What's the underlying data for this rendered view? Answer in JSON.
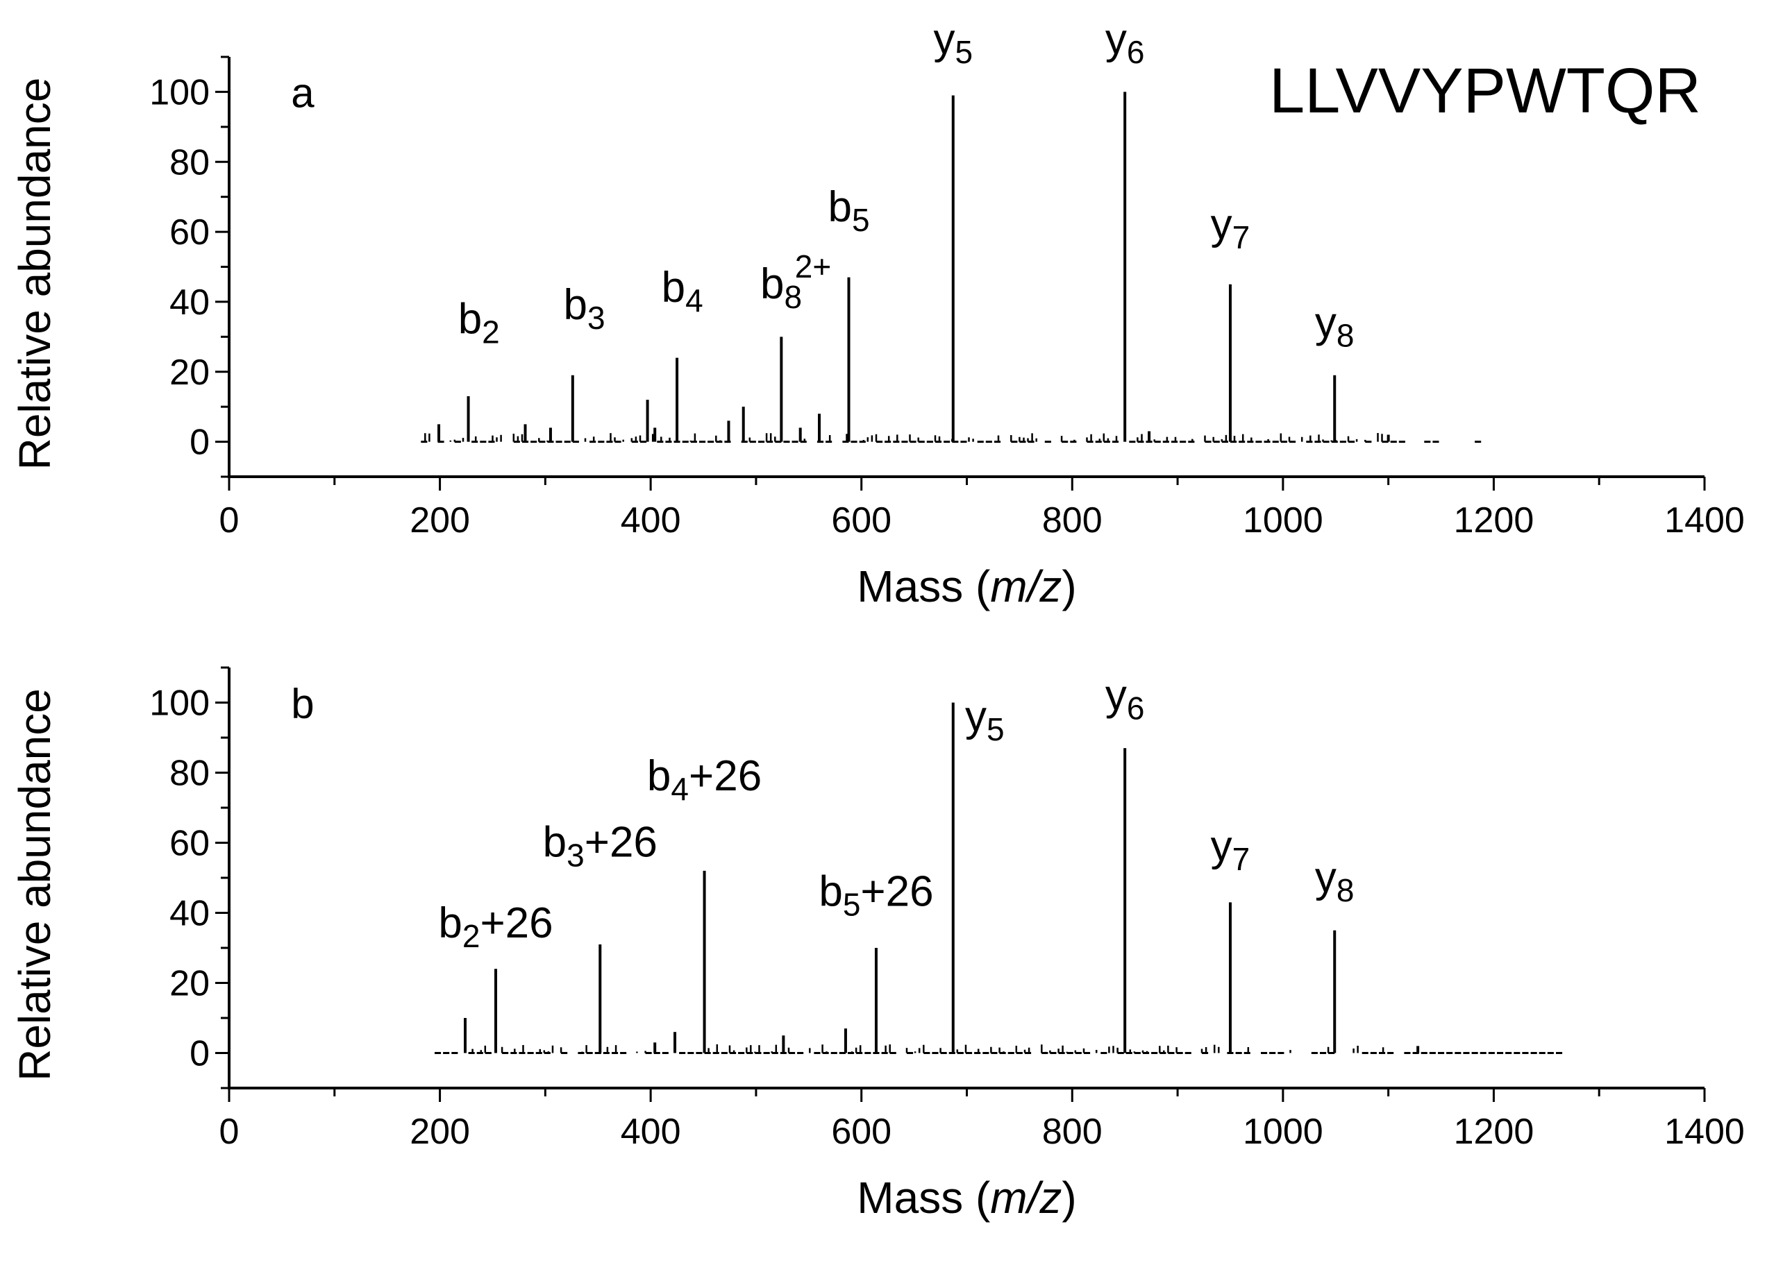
{
  "figure": {
    "peptide": "LLVVYPWTQR",
    "text_color": "#000000",
    "background": "#ffffff"
  },
  "chart_data": [
    {
      "type": "bar",
      "panel": "a",
      "title": "",
      "xlabel_main": "Mass (",
      "xlabel_italic": "m/z",
      "xlabel_close": ")",
      "ylabel": "Relative abundance",
      "xlim": [
        0,
        1400
      ],
      "ylim": [
        -10,
        110
      ],
      "xticks": [
        0,
        200,
        400,
        600,
        800,
        1000,
        1200,
        1400
      ],
      "yticks": [
        0,
        20,
        40,
        60,
        80,
        100
      ],
      "noise_range": [
        182,
        1195
      ],
      "peaks": [
        {
          "x": 199,
          "y": 5
        },
        {
          "x": 227,
          "y": 13
        },
        {
          "x": 281,
          "y": 5
        },
        {
          "x": 305,
          "y": 4
        },
        {
          "x": 326,
          "y": 19
        },
        {
          "x": 397,
          "y": 12
        },
        {
          "x": 404,
          "y": 4
        },
        {
          "x": 425,
          "y": 24
        },
        {
          "x": 474,
          "y": 6
        },
        {
          "x": 488,
          "y": 10
        },
        {
          "x": 524,
          "y": 30
        },
        {
          "x": 542,
          "y": 4
        },
        {
          "x": 560,
          "y": 8
        },
        {
          "x": 588,
          "y": 47
        },
        {
          "x": 687,
          "y": 99
        },
        {
          "x": 850,
          "y": 100
        },
        {
          "x": 873,
          "y": 3
        },
        {
          "x": 950,
          "y": 45
        },
        {
          "x": 1049,
          "y": 19
        },
        {
          "x": 1100,
          "y": 2
        }
      ],
      "ion_labels": [
        {
          "base": "b",
          "sub": "2",
          "sup": "",
          "suffix": "",
          "x": 237,
          "y": 31
        },
        {
          "base": "b",
          "sub": "3",
          "sup": "",
          "suffix": "",
          "x": 337,
          "y": 35
        },
        {
          "base": "b",
          "sub": "4",
          "sup": "",
          "suffix": "",
          "x": 430,
          "y": 40
        },
        {
          "base": "b",
          "sub": "8",
          "sup": "2+",
          "suffix": "",
          "x": 533,
          "y": 41
        },
        {
          "base": "b",
          "sub": "5",
          "sup": "",
          "suffix": "",
          "x": 588,
          "y": 63
        },
        {
          "base": "y",
          "sub": "5",
          "sup": "",
          "suffix": "",
          "x": 687,
          "y": 111
        },
        {
          "base": "y",
          "sub": "6",
          "sup": "",
          "suffix": "",
          "x": 850,
          "y": 111
        },
        {
          "base": "y",
          "sub": "7",
          "sup": "",
          "suffix": "",
          "x": 950,
          "y": 58
        },
        {
          "base": "y",
          "sub": "8",
          "sup": "",
          "suffix": "",
          "x": 1049,
          "y": 30
        }
      ]
    },
    {
      "type": "bar",
      "panel": "b",
      "title": "",
      "xlabel_main": "Mass (",
      "xlabel_italic": "m/z",
      "xlabel_close": ")",
      "ylabel": "Relative abundance",
      "xlim": [
        0,
        1400
      ],
      "ylim": [
        -10,
        110
      ],
      "xticks": [
        0,
        200,
        400,
        600,
        800,
        1000,
        1200,
        1400
      ],
      "yticks": [
        0,
        20,
        40,
        60,
        80,
        100
      ],
      "noise_range": [
        195,
        1260
      ],
      "peaks": [
        {
          "x": 224,
          "y": 10
        },
        {
          "x": 253,
          "y": 24
        },
        {
          "x": 352,
          "y": 31
        },
        {
          "x": 404,
          "y": 3
        },
        {
          "x": 423,
          "y": 6
        },
        {
          "x": 451,
          "y": 52
        },
        {
          "x": 526,
          "y": 5
        },
        {
          "x": 585,
          "y": 7
        },
        {
          "x": 614,
          "y": 30
        },
        {
          "x": 687,
          "y": 100
        },
        {
          "x": 850,
          "y": 87
        },
        {
          "x": 950,
          "y": 43
        },
        {
          "x": 1049,
          "y": 35
        },
        {
          "x": 1128,
          "y": 2
        }
      ],
      "ion_labels": [
        {
          "base": "b",
          "sub": "2",
          "sup": "",
          "suffix": "+26",
          "x": 253,
          "y": 33
        },
        {
          "base": "b",
          "sub": "3",
          "sup": "",
          "suffix": "+26",
          "x": 352,
          "y": 56
        },
        {
          "base": "b",
          "sub": "4",
          "sup": "",
          "suffix": "+26",
          "x": 451,
          "y": 75
        },
        {
          "base": "b",
          "sub": "5",
          "sup": "",
          "suffix": "+26",
          "x": 614,
          "y": 42
        },
        {
          "base": "y",
          "sub": "5",
          "sup": "",
          "suffix": "",
          "x": 717,
          "y": 92
        },
        {
          "base": "y",
          "sub": "6",
          "sup": "",
          "suffix": "",
          "x": 850,
          "y": 98
        },
        {
          "base": "y",
          "sub": "7",
          "sup": "",
          "suffix": "",
          "x": 950,
          "y": 55
        },
        {
          "base": "y",
          "sub": "8",
          "sup": "",
          "suffix": "",
          "x": 1049,
          "y": 46
        }
      ]
    }
  ]
}
